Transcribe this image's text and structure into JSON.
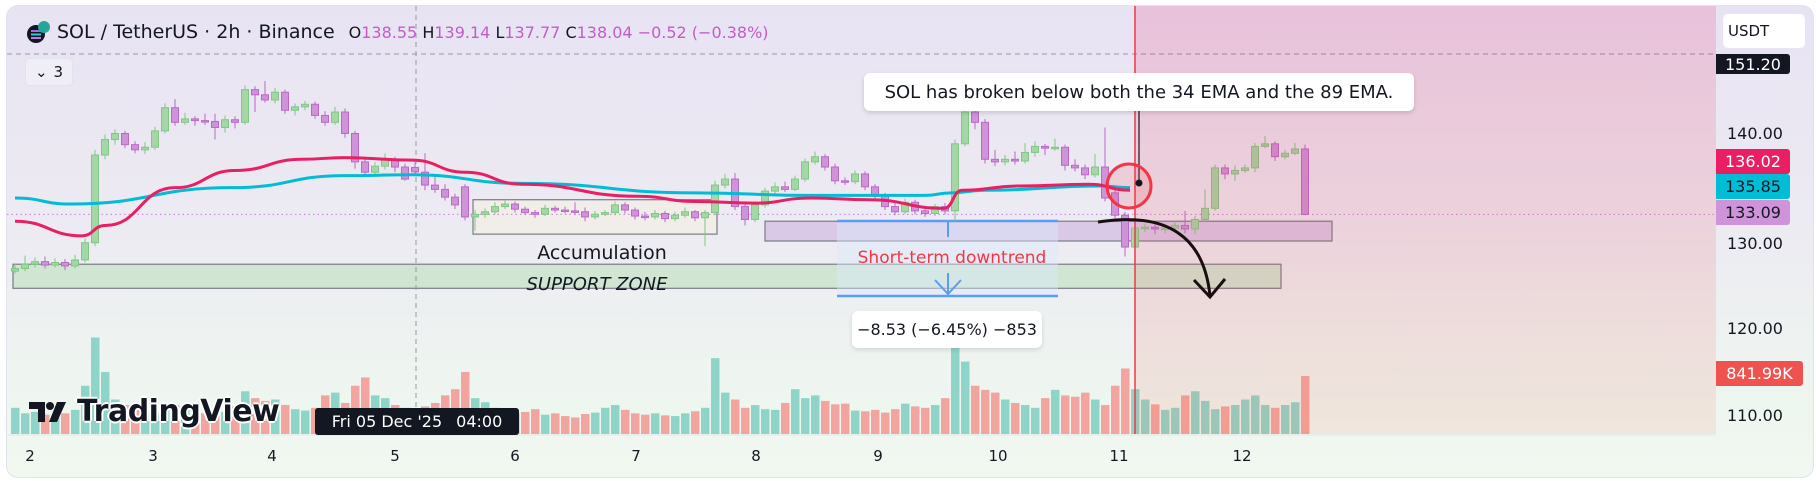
{
  "header": {
    "symbol": "SOL / TetherUS · 2h · Binance",
    "open_label": "O",
    "open": "138.55",
    "high_label": "H",
    "high": "139.14",
    "low_label": "L",
    "low": "137.77",
    "close_label": "C",
    "close": "138.04",
    "change": "−0.52 (−0.38%)",
    "indicators_count": "3"
  },
  "price_axis": {
    "currency": "USDT",
    "crosshair_price": "151.20",
    "ticks": [
      "140.00",
      "130.00",
      "120.00",
      "110.00"
    ],
    "ema34_label": "136.02",
    "ema89_label": "135.85",
    "last_price_label": "133.09",
    "volume_label": "841.99K"
  },
  "time_axis": {
    "ticks": [
      "2",
      "3",
      "4",
      "5",
      "6",
      "7",
      "8",
      "9",
      "10",
      "11",
      "12"
    ],
    "crosshair_date": "Fri 05 Dec '25",
    "crosshair_time": "04:00"
  },
  "annotations": {
    "callout": "SOL has broken below both the 34 EMA and the 89 EMA.",
    "accumulation": "Accumulation",
    "support_zone": "SUPPORT ZONE",
    "short_term": "Short-term downtrend",
    "measure": "−8.53 (−6.45%) −853"
  },
  "branding": {
    "logo_text": "TradingView"
  },
  "colors": {
    "up_body": "#a5d6a7",
    "up_border": "#81c784",
    "down_body": "#ce93d8",
    "down_border": "#ba68c8",
    "vol_up": "#8fd4c8",
    "vol_down": "#f2a49e",
    "ema34": "#e91e63",
    "ema89": "#00bcd4",
    "measure_blue": "#5b9cf6",
    "alert_red": "#f23645"
  },
  "chart_data": {
    "type": "candlestick",
    "interval": "2h",
    "ylim": [
      105,
      152
    ],
    "last_price": 133.09,
    "crosshair_bar": 40,
    "candles_ohlc": [
      [
        126.5,
        127.4,
        126.2,
        126.8
      ],
      [
        126.8,
        128.3,
        126.5,
        127.3
      ],
      [
        127.3,
        128.1,
        126.9,
        127.6
      ],
      [
        127.6,
        128.2,
        126.8,
        127.2
      ],
      [
        127.2,
        128.0,
        126.9,
        127.5
      ],
      [
        127.5,
        127.9,
        126.6,
        127.1
      ],
      [
        127.1,
        128.4,
        126.8,
        127.8
      ],
      [
        127.8,
        130.3,
        127.5,
        129.8
      ],
      [
        129.8,
        140.6,
        129.4,
        140.0
      ],
      [
        140.0,
        142.4,
        139.5,
        141.8
      ],
      [
        141.8,
        143.0,
        141.2,
        142.5
      ],
      [
        142.5,
        142.8,
        140.8,
        141.2
      ],
      [
        141.2,
        141.6,
        140.2,
        140.6
      ],
      [
        140.6,
        141.5,
        140.1,
        140.9
      ],
      [
        140.9,
        143.3,
        140.6,
        142.8
      ],
      [
        142.8,
        146.0,
        142.5,
        145.5
      ],
      [
        145.5,
        146.5,
        143.4,
        143.8
      ],
      [
        143.8,
        144.9,
        143.5,
        144.2
      ],
      [
        144.2,
        144.5,
        143.4,
        144.0
      ],
      [
        144.0,
        144.8,
        143.5,
        143.9
      ],
      [
        143.9,
        144.8,
        141.8,
        143.2
      ],
      [
        143.2,
        144.6,
        142.6,
        144.1
      ],
      [
        144.1,
        144.5,
        143.1,
        143.8
      ],
      [
        143.8,
        148.1,
        143.5,
        147.6
      ],
      [
        147.6,
        148.0,
        145.0,
        147.0
      ],
      [
        147.0,
        148.6,
        146.1,
        146.4
      ],
      [
        146.4,
        147.8,
        146.0,
        147.3
      ],
      [
        147.3,
        147.6,
        144.8,
        145.2
      ],
      [
        145.2,
        146.0,
        144.6,
        145.6
      ],
      [
        145.6,
        146.3,
        145.2,
        145.9
      ],
      [
        145.9,
        146.2,
        144.2,
        144.6
      ],
      [
        144.6,
        145.1,
        143.4,
        143.8
      ],
      [
        143.8,
        145.6,
        143.5,
        145.0
      ],
      [
        145.0,
        145.4,
        142.0,
        142.5
      ],
      [
        142.5,
        142.8,
        138.4,
        139.2
      ],
      [
        139.2,
        139.6,
        137.6,
        138.0
      ],
      [
        138.0,
        139.2,
        137.7,
        138.7
      ],
      [
        138.7,
        140.2,
        138.3,
        139.5
      ],
      [
        139.5,
        139.8,
        138.0,
        138.6
      ],
      [
        138.6,
        139.0,
        137.0,
        137.2
      ],
      [
        138.55,
        139.14,
        137.77,
        138.04
      ],
      [
        138.0,
        140.2,
        135.9,
        136.5
      ],
      [
        136.5,
        137.6,
        135.6,
        136.0
      ],
      [
        136.0,
        136.6,
        134.7,
        135.1
      ],
      [
        135.1,
        135.5,
        133.7,
        134.2
      ],
      [
        136.3,
        136.6,
        132.4,
        132.8
      ],
      [
        132.8,
        133.6,
        131.2,
        133.1
      ],
      [
        133.1,
        133.8,
        132.7,
        133.4
      ],
      [
        133.4,
        134.5,
        133.1,
        134.0
      ],
      [
        134.0,
        134.8,
        133.7,
        134.3
      ],
      [
        134.3,
        134.6,
        133.3,
        133.7
      ],
      [
        133.7,
        134.0,
        133.0,
        133.3
      ],
      [
        133.3,
        133.6,
        132.7,
        133.1
      ],
      [
        133.1,
        134.2,
        132.9,
        133.8
      ],
      [
        133.8,
        134.1,
        133.3,
        133.6
      ],
      [
        133.6,
        134.0,
        133.2,
        133.5
      ],
      [
        133.5,
        134.5,
        133.0,
        133.4
      ],
      [
        133.4,
        133.9,
        132.3,
        132.8
      ],
      [
        132.8,
        133.5,
        132.5,
        133.1
      ],
      [
        133.1,
        133.6,
        132.9,
        133.3
      ],
      [
        133.3,
        134.6,
        133.0,
        134.2
      ],
      [
        134.2,
        134.5,
        133.2,
        133.6
      ],
      [
        133.6,
        133.9,
        132.5,
        132.9
      ],
      [
        132.9,
        133.4,
        132.4,
        132.8
      ],
      [
        132.8,
        133.6,
        132.5,
        133.2
      ],
      [
        133.2,
        133.5,
        132.2,
        132.6
      ],
      [
        132.6,
        133.4,
        132.3,
        133.0
      ],
      [
        133.0,
        133.9,
        132.7,
        133.4
      ],
      [
        133.4,
        133.6,
        132.3,
        132.7
      ],
      [
        132.7,
        133.6,
        129.4,
        133.3
      ],
      [
        133.3,
        137.0,
        133.0,
        136.5
      ],
      [
        136.5,
        137.8,
        136.1,
        137.2
      ],
      [
        137.2,
        137.9,
        133.6,
        134.0
      ],
      [
        134.0,
        134.3,
        131.8,
        132.5
      ],
      [
        132.5,
        134.6,
        132.2,
        134.2
      ],
      [
        134.2,
        136.2,
        133.9,
        135.8
      ],
      [
        135.8,
        136.8,
        135.5,
        136.3
      ],
      [
        136.3,
        136.9,
        135.7,
        136.0
      ],
      [
        136.0,
        137.6,
        135.8,
        137.2
      ],
      [
        137.2,
        139.6,
        136.9,
        139.2
      ],
      [
        139.2,
        140.4,
        138.9,
        139.8
      ],
      [
        139.8,
        140.1,
        138.2,
        138.6
      ],
      [
        138.6,
        139.0,
        136.6,
        137.0
      ],
      [
        137.0,
        137.4,
        136.5,
        136.9
      ],
      [
        136.9,
        138.2,
        136.6,
        137.8
      ],
      [
        137.8,
        138.1,
        135.9,
        136.3
      ],
      [
        136.3,
        136.6,
        134.8,
        135.2
      ],
      [
        135.2,
        135.6,
        133.6,
        134.0
      ],
      [
        134.0,
        134.5,
        133.0,
        133.4
      ],
      [
        133.4,
        134.9,
        133.1,
        134.5
      ],
      [
        134.5,
        134.8,
        133.1,
        133.5
      ],
      [
        133.5,
        133.9,
        132.8,
        133.2
      ],
      [
        133.2,
        134.3,
        132.9,
        134.0
      ],
      [
        134.0,
        134.4,
        133.1,
        133.5
      ],
      [
        133.5,
        141.8,
        132.3,
        141.3
      ],
      [
        141.3,
        146.9,
        141.0,
        145.0
      ],
      [
        145.0,
        145.2,
        143.0,
        143.8
      ],
      [
        143.8,
        144.2,
        139.0,
        139.5
      ],
      [
        139.5,
        140.6,
        138.7,
        139.2
      ],
      [
        139.2,
        140.0,
        138.8,
        139.5
      ],
      [
        139.5,
        140.4,
        138.9,
        139.3
      ],
      [
        139.3,
        141.4,
        139.0,
        140.3
      ],
      [
        140.3,
        141.6,
        139.8,
        141.0
      ],
      [
        141.0,
        141.3,
        140.0,
        140.8
      ],
      [
        140.8,
        141.9,
        140.5,
        140.9
      ],
      [
        140.9,
        141.2,
        138.2,
        138.8
      ],
      [
        138.8,
        139.5,
        138.1,
        138.5
      ],
      [
        138.5,
        138.9,
        137.2,
        137.7
      ],
      [
        137.7,
        140.1,
        137.4,
        138.6
      ],
      [
        138.6,
        143.2,
        134.6,
        135.0
      ],
      [
        135.6,
        136.0,
        132.6,
        133.0
      ],
      [
        133.0,
        133.4,
        128.2,
        129.3
      ],
      [
        129.3,
        131.9,
        129.0,
        131.5
      ],
      [
        131.5,
        132.0,
        131.0,
        131.6
      ],
      [
        131.6,
        131.9,
        130.8,
        131.4
      ],
      [
        131.4,
        131.9,
        130.9,
        131.5
      ],
      [
        131.5,
        132.3,
        131.2,
        131.8
      ],
      [
        131.8,
        133.5,
        130.9,
        131.4
      ],
      [
        131.4,
        132.9,
        130.8,
        132.5
      ],
      [
        132.5,
        136.0,
        132.2,
        133.8
      ],
      [
        133.8,
        138.9,
        133.5,
        138.5
      ],
      [
        138.5,
        138.9,
        137.2,
        137.8
      ],
      [
        137.8,
        138.8,
        137.0,
        138.2
      ],
      [
        138.2,
        138.9,
        137.9,
        138.5
      ],
      [
        138.5,
        141.4,
        138.0,
        141.0
      ],
      [
        141.0,
        142.2,
        140.8,
        141.3
      ],
      [
        141.3,
        141.6,
        139.3,
        139.8
      ],
      [
        139.8,
        140.6,
        139.5,
        140.2
      ],
      [
        140.2,
        141.4,
        140.0,
        140.7
      ],
      [
        140.7,
        141.2,
        133.0,
        133.09
      ]
    ],
    "volume_k": [
      380,
      300,
      320,
      280,
      260,
      300,
      350,
      700,
      1400,
      900,
      500,
      420,
      380,
      320,
      300,
      360,
      420,
      380,
      350,
      300,
      280,
      320,
      400,
      620,
      520,
      480,
      500,
      420,
      360,
      340,
      380,
      560,
      600,
      450,
      700,
      820,
      560,
      520,
      420,
      380,
      360,
      400,
      450,
      560,
      650,
      900,
      520,
      460,
      380,
      300,
      300,
      320,
      360,
      280,
      300,
      260,
      240,
      290,
      310,
      380,
      420,
      350,
      300,
      280,
      300,
      270,
      260,
      300,
      330,
      380,
      1100,
      600,
      500,
      380,
      420,
      360,
      350,
      450,
      650,
      520,
      560,
      480,
      430,
      440,
      340,
      330,
      350,
      310,
      360,
      440,
      400,
      380,
      420,
      520,
      1400,
      1050,
      700,
      640,
      600,
      500,
      450,
      420,
      380,
      520,
      640,
      560,
      540,
      600,
      500,
      420,
      700,
      950,
      650,
      500,
      430,
      350,
      380,
      560,
      620,
      480,
      360,
      400,
      420,
      500,
      560,
      420,
      380,
      420,
      460,
      841.99
    ],
    "ema34_points": [
      [
        0,
        132.3
      ],
      [
        6.7,
        130.6
      ],
      [
        9,
        131.8
      ],
      [
        16,
        136.2
      ],
      [
        22,
        138.2
      ],
      [
        28.7,
        139.5
      ],
      [
        33,
        139.7
      ],
      [
        39.7,
        139.4
      ],
      [
        45,
        138.0
      ],
      [
        50.7,
        136.6
      ],
      [
        62.3,
        135.2
      ],
      [
        68,
        134.6
      ],
      [
        73.9,
        134.4
      ],
      [
        79.6,
        135.0
      ],
      [
        85.4,
        134.8
      ],
      [
        92.9,
        133.8
      ],
      [
        94.7,
        135.9
      ],
      [
        100.5,
        136.4
      ],
      [
        107.4,
        136.6
      ],
      [
        111.5,
        135.9
      ]
    ],
    "ema89_points": [
      [
        0,
        135.0
      ],
      [
        5.5,
        134.3
      ],
      [
        21.8,
        136.2
      ],
      [
        33,
        137.6
      ],
      [
        39.7,
        137.7
      ],
      [
        50.7,
        136.7
      ],
      [
        68,
        135.6
      ],
      [
        79.6,
        135.3
      ],
      [
        91,
        135.3
      ],
      [
        93.6,
        135.6
      ],
      [
        97,
        135.9
      ],
      [
        108.6,
        136.4
      ],
      [
        111.5,
        136.2
      ]
    ],
    "zones": {
      "support": [
        127.3,
        124.5
      ],
      "accumulation": [
        134.8,
        130.8
      ],
      "breakdown_zone": [
        132.3,
        130.0
      ]
    },
    "measure_change": -8.53,
    "measure_change_pct": -6.45,
    "measure_ticks": -853
  }
}
